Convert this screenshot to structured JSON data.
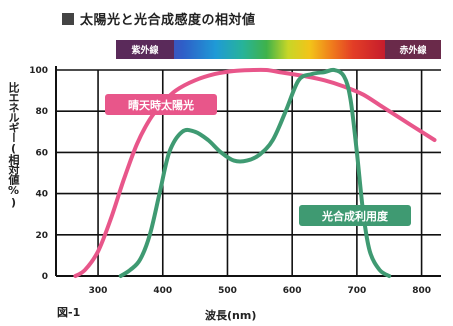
{
  "title": "太陽光と光合成感度の相対値",
  "figure_label": "図-1",
  "colors": {
    "sunlight": "#e8568a",
    "photosynthesis": "#3f9a72",
    "uv_band": "#5a2a5a",
    "ir_band": "#6a2a4a"
  },
  "spectrum_band": {
    "uv_label": "紫外線",
    "ir_label": "赤外線"
  },
  "chart_data": {
    "type": "line",
    "title": "太陽光と光合成感度の相対値",
    "xlabel": "波長(nm)",
    "ylabel": "比エネルギー(相対値%)",
    "xlim": [
      235,
      830
    ],
    "ylim": [
      0,
      100
    ],
    "xticks": [
      300,
      400,
      500,
      600,
      700,
      800
    ],
    "yticks": [
      0,
      20,
      40,
      60,
      80,
      100
    ],
    "grid": "horizontal-lines",
    "series": [
      {
        "name": "晴天時太陽光",
        "x": [
          265,
          280,
          300,
          320,
          340,
          360,
          380,
          400,
          420,
          450,
          480,
          510,
          540,
          560,
          580,
          600,
          620,
          650,
          680,
          710,
          740,
          770,
          800,
          820
        ],
        "y": [
          0,
          3,
          12,
          28,
          47,
          64,
          76,
          84,
          90,
          95,
          98,
          99.5,
          100,
          100,
          99,
          98,
          97,
          95,
          92,
          88,
          82,
          76,
          70,
          66
        ]
      },
      {
        "name": "光合成利用度",
        "x": [
          335,
          350,
          365,
          380,
          395,
          410,
          430,
          450,
          470,
          490,
          510,
          530,
          550,
          570,
          590,
          610,
          630,
          650,
          665,
          680,
          690,
          700,
          710,
          720,
          735,
          750
        ],
        "y": [
          0,
          3,
          8,
          20,
          40,
          60,
          70,
          70,
          66,
          60,
          56,
          56,
          59,
          66,
          80,
          95,
          98,
          99,
          100,
          97,
          86,
          60,
          30,
          12,
          3,
          0
        ]
      }
    ]
  }
}
